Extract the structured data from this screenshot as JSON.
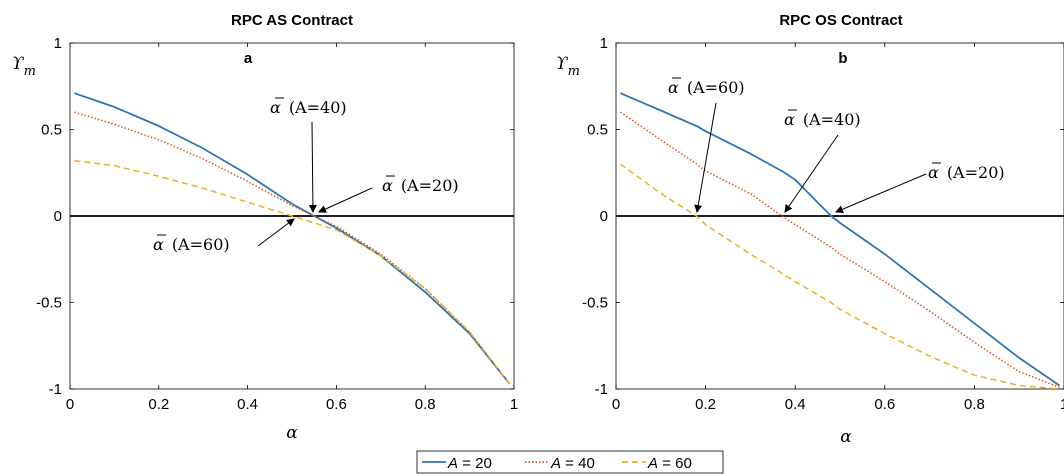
{
  "legend": [
    {
      "symbol": "A",
      "text": " = 20",
      "color": "#2e75b6",
      "dash": ""
    },
    {
      "symbol": "A",
      "text": " = 40",
      "color": "#d9531e",
      "dash": "1.5,2"
    },
    {
      "symbol": "A",
      "text": " = 60",
      "color": "#edb120",
      "dash": "6,4"
    }
  ],
  "chart_data": [
    {
      "type": "line",
      "title": "RPC AS Contract",
      "panel_label": "a",
      "xlabel": "α",
      "ylabel": "ϒ",
      "ylabel_sub": "m",
      "xlim": [
        0,
        1
      ],
      "ylim": [
        -1,
        1
      ],
      "xticks": [
        "0",
        "0.2",
        "0.4",
        "0.6",
        "0.8",
        "1"
      ],
      "yticks": [
        "-1",
        "-0.5",
        "0",
        "0.5",
        "1"
      ],
      "x": [
        0.01,
        0.1,
        0.2,
        0.3,
        0.4,
        0.5,
        0.55,
        0.6,
        0.7,
        0.8,
        0.9,
        0.99
      ],
      "series": [
        {
          "name": "A = 20",
          "values": [
            0.71,
            0.63,
            0.52,
            0.39,
            0.24,
            0.07,
            0.0,
            -0.07,
            -0.23,
            -0.44,
            -0.68,
            -0.97
          ]
        },
        {
          "name": "A = 40",
          "values": [
            0.6,
            0.53,
            0.44,
            0.33,
            0.2,
            0.06,
            0.0,
            -0.06,
            -0.22,
            -0.42,
            -0.67,
            -0.97
          ]
        },
        {
          "name": "A = 60",
          "values": [
            0.32,
            0.29,
            0.23,
            0.16,
            0.08,
            0.0,
            -0.04,
            -0.08,
            -0.23,
            -0.42,
            -0.67,
            -0.97
          ]
        }
      ],
      "annotations": [
        {
          "bar": "α",
          "text": "(A=40)",
          "target": [
            0.55,
            0
          ]
        },
        {
          "bar": "α",
          "text": "(A=20)",
          "target": [
            0.55,
            0
          ]
        },
        {
          "bar": "α",
          "text": "(A=60)",
          "target": [
            0.51,
            0
          ]
        }
      ]
    },
    {
      "type": "line",
      "title": "RPC OS Contract",
      "panel_label": "b",
      "xlabel": "α",
      "ylabel": "ϒ",
      "ylabel_sub": "m",
      "xlim": [
        0,
        1
      ],
      "ylim": [
        -1,
        1
      ],
      "xticks": [
        "0",
        "0.2",
        "0.4",
        "0.6",
        "0.8",
        "1"
      ],
      "yticks": [
        "-1",
        "-0.5",
        "0",
        "0.5",
        "1"
      ],
      "x": [
        0.01,
        0.1,
        0.18,
        0.2,
        0.3,
        0.37,
        0.4,
        0.48,
        0.5,
        0.6,
        0.7,
        0.8,
        0.9,
        0.99
      ],
      "series": [
        {
          "name": "A = 20",
          "values": [
            0.71,
            0.61,
            0.52,
            0.49,
            0.36,
            0.26,
            0.21,
            0.0,
            -0.04,
            -0.22,
            -0.42,
            -0.62,
            -0.82,
            -0.98
          ]
        },
        {
          "name": "A = 40",
          "values": [
            0.6,
            0.44,
            0.3,
            0.26,
            0.13,
            0.0,
            -0.05,
            -0.18,
            -0.22,
            -0.38,
            -0.55,
            -0.73,
            -0.9,
            -0.99
          ]
        },
        {
          "name": "A = 60",
          "values": [
            0.3,
            0.13,
            0.0,
            -0.05,
            -0.22,
            -0.33,
            -0.38,
            -0.5,
            -0.54,
            -0.68,
            -0.81,
            -0.92,
            -0.98,
            -1.0
          ]
        }
      ],
      "annotations": [
        {
          "bar": "α",
          "text": "(A=60)",
          "target": [
            0.18,
            0
          ]
        },
        {
          "bar": "α",
          "text": "(A=40)",
          "target": [
            0.37,
            0
          ]
        },
        {
          "bar": "α",
          "text": "(A=20)",
          "target": [
            0.48,
            0
          ]
        }
      ]
    }
  ]
}
